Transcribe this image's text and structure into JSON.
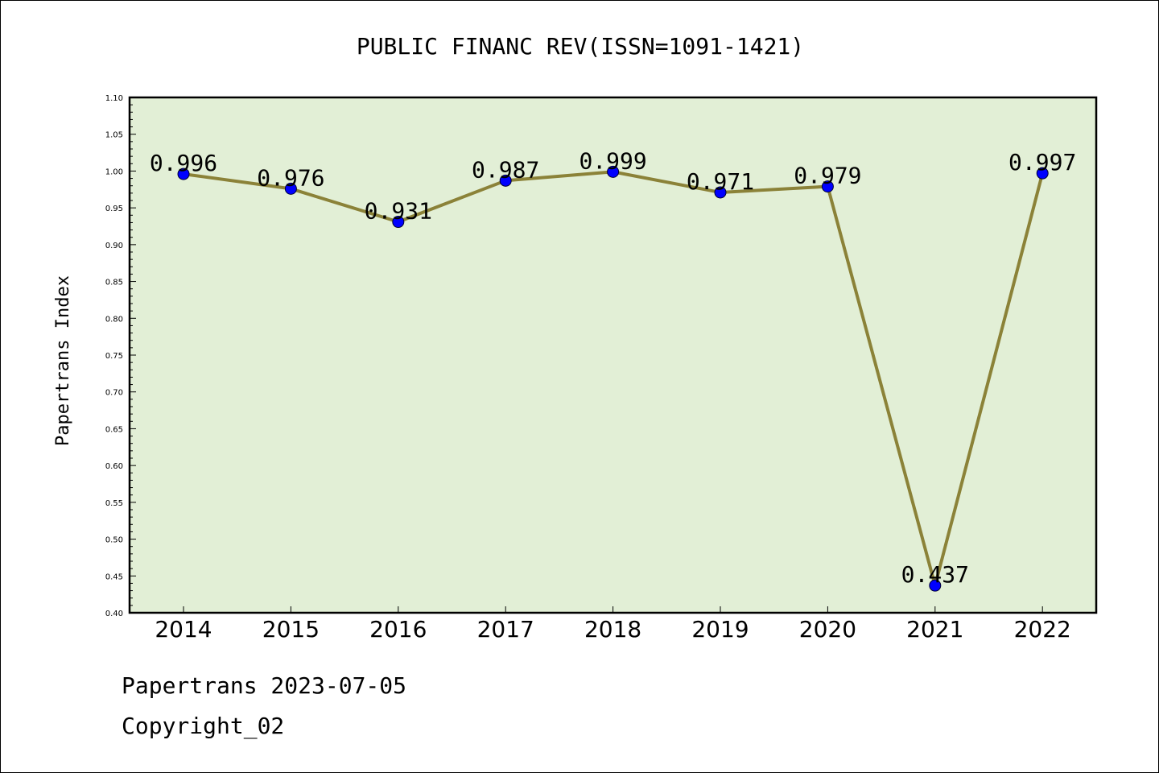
{
  "chart_data": {
    "type": "line",
    "title": "PUBLIC FINANC REV(ISSN=1091-1421)",
    "xlabel": "",
    "ylabel": "Papertrans Index",
    "categories": [
      "2014",
      "2015",
      "2016",
      "2017",
      "2018",
      "2019",
      "2020",
      "2021",
      "2022"
    ],
    "series": [
      {
        "values": [
          0.996,
          0.976,
          0.931,
          0.987,
          0.999,
          0.971,
          0.979,
          0.437,
          0.997
        ]
      }
    ],
    "data_labels": [
      "0.996",
      "0.976",
      "0.931",
      "0.987",
      "0.999",
      "0.971",
      "0.979",
      "0.437",
      "0.997"
    ],
    "ylim": [
      0.4,
      1.1
    ],
    "yticks": [
      "0.40",
      "0.45",
      "0.50",
      "0.55",
      "0.60",
      "0.65",
      "0.70",
      "0.75",
      "0.80",
      "0.85",
      "0.90",
      "0.95",
      "1.00",
      "1.05",
      "1.10"
    ],
    "grid": false,
    "legend": "none",
    "colors": {
      "plot_background": "#e2efd6",
      "line": "#8b8238",
      "marker": "#0000ff"
    }
  },
  "footer": {
    "line1": "Papertrans 2023-07-05",
    "line2": "Copyright_02"
  }
}
